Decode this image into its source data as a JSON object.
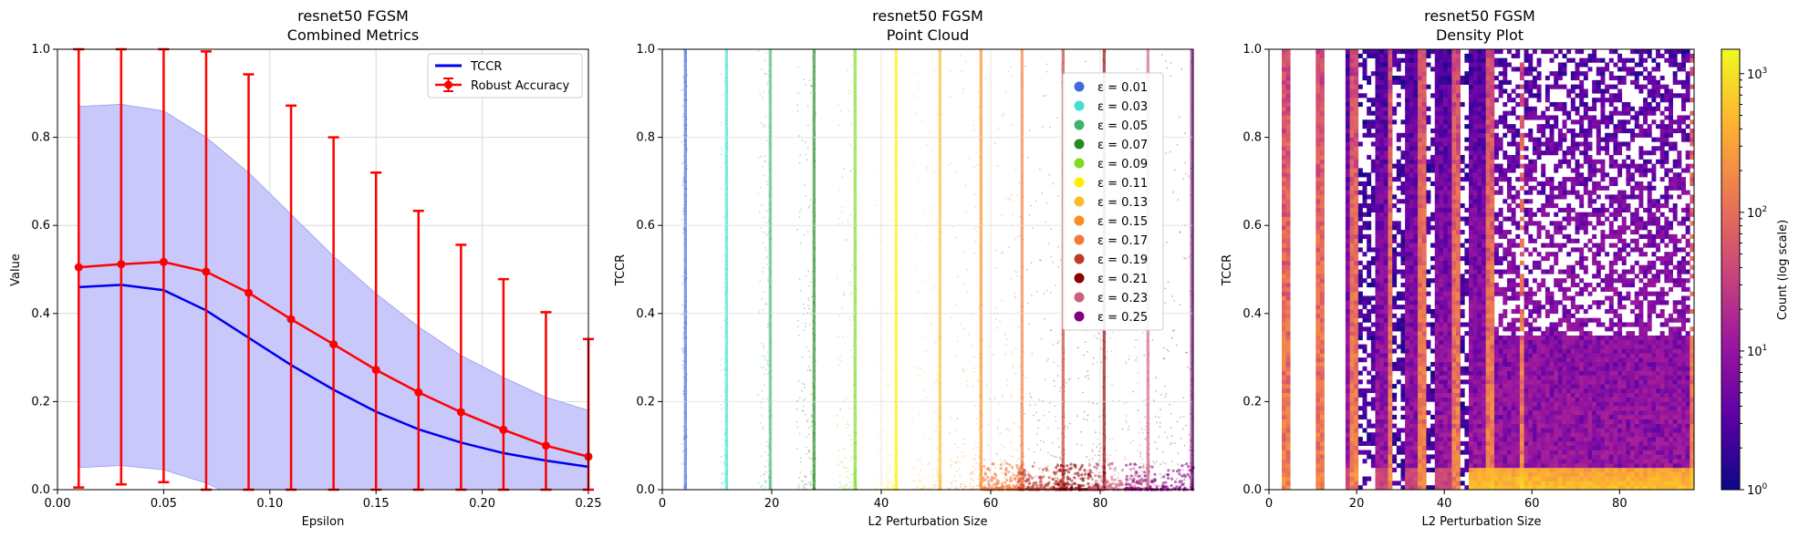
{
  "colors": {
    "tccr_line": "#0000ee",
    "tccr_band": "#c8c8fa",
    "robust": "#ff0000",
    "grid": "#d9d9d9"
  },
  "chart_data": [
    {
      "type": "line",
      "title": "resnet50 FGSM",
      "subtitle": "Combined Metrics",
      "xlabel": "Epsilon",
      "ylabel": "Value",
      "xlim": [
        0.0,
        0.25
      ],
      "ylim": [
        0.0,
        1.0
      ],
      "xticks": [
        "0.00",
        "0.05",
        "0.10",
        "0.15",
        "0.20",
        "0.25"
      ],
      "yticks": [
        "0.0",
        "0.2",
        "0.4",
        "0.6",
        "0.8",
        "1.0"
      ],
      "grid": true,
      "legend_position": "top-right",
      "x": [
        0.01,
        0.03,
        0.05,
        0.07,
        0.09,
        0.11,
        0.13,
        0.15,
        0.17,
        0.19,
        0.21,
        0.23,
        0.25
      ],
      "series": [
        {
          "name": "TCCR",
          "values": [
            0.46,
            0.465,
            0.453,
            0.407,
            0.345,
            0.283,
            0.227,
            0.177,
            0.137,
            0.107,
            0.083,
            0.066,
            0.052
          ],
          "band_upper": [
            0.87,
            0.875,
            0.86,
            0.8,
            0.72,
            0.625,
            0.53,
            0.445,
            0.37,
            0.305,
            0.255,
            0.21,
            0.18
          ],
          "band_lower": [
            0.05,
            0.055,
            0.045,
            0.015,
            -0.03,
            -0.06,
            -0.08,
            -0.09,
            -0.095,
            -0.09,
            -0.09,
            -0.08,
            -0.075
          ]
        },
        {
          "name": "Robust Accuracy",
          "values": [
            0.505,
            0.512,
            0.517,
            0.495,
            0.447,
            0.387,
            0.33,
            0.272,
            0.221,
            0.176,
            0.136,
            0.1,
            0.075
          ],
          "err_upper": [
            1.0,
            1.0,
            1.0,
            0.995,
            0.943,
            0.872,
            0.8,
            0.72,
            0.633,
            0.556,
            0.478,
            0.403,
            0.342
          ],
          "err_lower": [
            0.005,
            0.012,
            0.017,
            0.0,
            0.0,
            0.0,
            0.0,
            0.0,
            0.0,
            0.0,
            0.0,
            0.0,
            0.0
          ]
        }
      ]
    },
    {
      "type": "scatter",
      "title": "resnet50 FGSM",
      "subtitle": "Point Cloud",
      "xlabel": "L2 Perturbation Size",
      "ylabel": "TCCR",
      "xlim": [
        0,
        97
      ],
      "ylim": [
        0.0,
        1.0
      ],
      "xticks": [
        "0",
        "20",
        "40",
        "60",
        "80"
      ],
      "yticks": [
        "0.0",
        "0.2",
        "0.4",
        "0.6",
        "0.8",
        "1.0"
      ],
      "grid": true,
      "legend_position": "top-right",
      "series": [
        {
          "name": "ε = 0.01",
          "color": "#4169e1",
          "l2_range": [
            3.5,
            4.5
          ]
        },
        {
          "name": "ε = 0.03",
          "color": "#40e0d0",
          "l2_range": [
            10.5,
            12.0
          ]
        },
        {
          "name": "ε = 0.05",
          "color": "#3cb371",
          "l2_range": [
            17.5,
            20.0
          ]
        },
        {
          "name": "ε = 0.07",
          "color": "#228b22",
          "l2_range": [
            24.5,
            28.0
          ]
        },
        {
          "name": "ε = 0.09",
          "color": "#7cdc1e",
          "l2_range": [
            31.5,
            35.5
          ]
        },
        {
          "name": "ε = 0.11",
          "color": "#ffee00",
          "l2_range": [
            38.5,
            43.0
          ]
        },
        {
          "name": "ε = 0.13",
          "color": "#fbbc30",
          "l2_range": [
            45.5,
            51.0
          ]
        },
        {
          "name": "ε = 0.15",
          "color": "#fb8c22",
          "l2_range": [
            52.0,
            58.5
          ]
        },
        {
          "name": "ε = 0.17",
          "color": "#f5793a",
          "l2_range": [
            58.5,
            66.0
          ]
        },
        {
          "name": "ε = 0.19",
          "color": "#c0392b",
          "l2_range": [
            65.0,
            73.5
          ]
        },
        {
          "name": "ε = 0.21",
          "color": "#8b0000",
          "l2_range": [
            71.5,
            81.0
          ]
        },
        {
          "name": "ε = 0.23",
          "color": "#d0607a",
          "l2_range": [
            78.0,
            89.0
          ]
        },
        {
          "name": "ε = 0.25",
          "color": "#800080",
          "l2_range": [
            84.5,
            97.0
          ]
        }
      ]
    },
    {
      "type": "heatmap",
      "title": "resnet50 FGSM",
      "subtitle": "Density Plot",
      "xlabel": "L2 Perturbation Size",
      "ylabel": "TCCR",
      "xlim": [
        0,
        97
      ],
      "ylim": [
        0.0,
        1.0
      ],
      "xticks": [
        "0",
        "20",
        "40",
        "60",
        "80"
      ],
      "yticks": [
        "0.0",
        "0.2",
        "0.4",
        "0.6",
        "0.8",
        "1.0"
      ],
      "colorbar_label": "Count (log scale)",
      "colorbar_scale": "log",
      "colorbar_range": [
        1,
        1500
      ],
      "colorbar_ticks": [
        {
          "value": 1,
          "base": "10",
          "exp": "0"
        },
        {
          "value": 10,
          "base": "10",
          "exp": "1"
        },
        {
          "value": 100,
          "base": "10",
          "exp": "2"
        },
        {
          "value": 1000,
          "base": "10",
          "exp": "3"
        }
      ],
      "colormap": [
        "#0d0887",
        "#5c01a6",
        "#9c179e",
        "#cc4778",
        "#ed7953",
        "#fdb42f",
        "#f0f921"
      ]
    }
  ]
}
